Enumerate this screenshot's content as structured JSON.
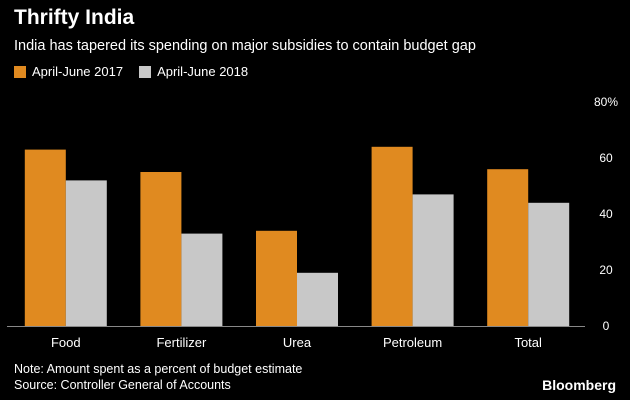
{
  "header": {
    "title": "Thrifty India",
    "subtitle": "India has tapered its spending on major subsidies to contain budget gap"
  },
  "footer": {
    "note": "Note: Amount spent as a percent of budget estimate",
    "source": "Source: Controller General of Accounts",
    "brand": "Bloomberg"
  },
  "colors": {
    "background": "#000000",
    "series_2017": "#e08a20",
    "series_2018": "#c8c8c8",
    "axis": "#888888"
  },
  "chart_data": {
    "type": "bar",
    "categories": [
      "Food",
      "Fertilizer",
      "Urea",
      "Petroleum",
      "Total"
    ],
    "series": [
      {
        "name": "April-June 2017",
        "values": [
          63,
          55,
          34,
          64,
          56
        ]
      },
      {
        "name": "April-June 2018",
        "values": [
          52,
          33,
          19,
          47,
          44
        ]
      }
    ],
    "ylim": [
      0,
      80
    ],
    "yticks": [
      0,
      20,
      40,
      60,
      80
    ],
    "ytick_labels": [
      "0",
      "20",
      "40",
      "60",
      "80%"
    ],
    "xlabel": "",
    "ylabel": "",
    "legend": "top-left",
    "grid": false
  }
}
